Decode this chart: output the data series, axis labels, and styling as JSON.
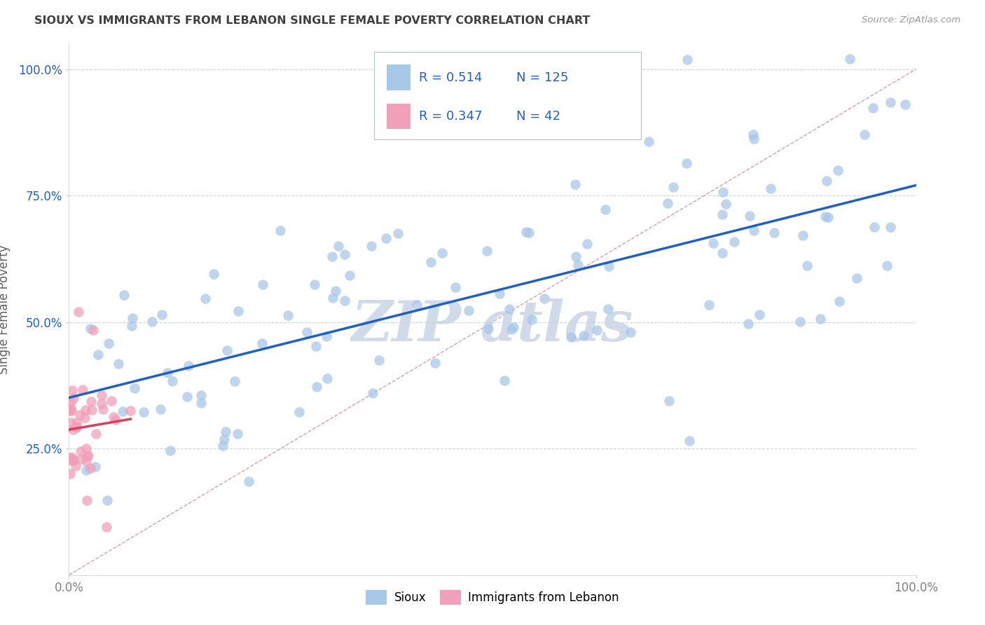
{
  "title": "SIOUX VS IMMIGRANTS FROM LEBANON SINGLE FEMALE POVERTY CORRELATION CHART",
  "source": "Source: ZipAtlas.com",
  "ylabel": "Single Female Poverty",
  "xlim": [
    0,
    1
  ],
  "ylim": [
    0,
    1.05
  ],
  "xtick_labels": [
    "0.0%",
    "100.0%"
  ],
  "ytick_labels": [
    "25.0%",
    "50.0%",
    "75.0%",
    "100.0%"
  ],
  "ytick_positions": [
    0.25,
    0.5,
    0.75,
    1.0
  ],
  "legend_labels": [
    "Sioux",
    "Immigrants from Lebanon"
  ],
  "sioux_color": "#a8c8e8",
  "lebanon_color": "#f0a0b8",
  "sioux_line_color": "#2060c0",
  "lebanon_line_color": "#d84060",
  "dashed_line_color": "#d0a0a8",
  "grid_color": "#c8d0d8",
  "watermark_color": "#c8d4e4",
  "R_sioux": 0.514,
  "N_sioux": 125,
  "R_lebanon": 0.347,
  "N_lebanon": 42,
  "legend_box_color": "#d8e4f0",
  "legend_box_edge": "#b0c0d0",
  "text_blue": "#2060c0",
  "title_color": "#404040",
  "ylabel_color": "#606060",
  "tick_color": "#808080",
  "ytick_color": "#2060c0"
}
